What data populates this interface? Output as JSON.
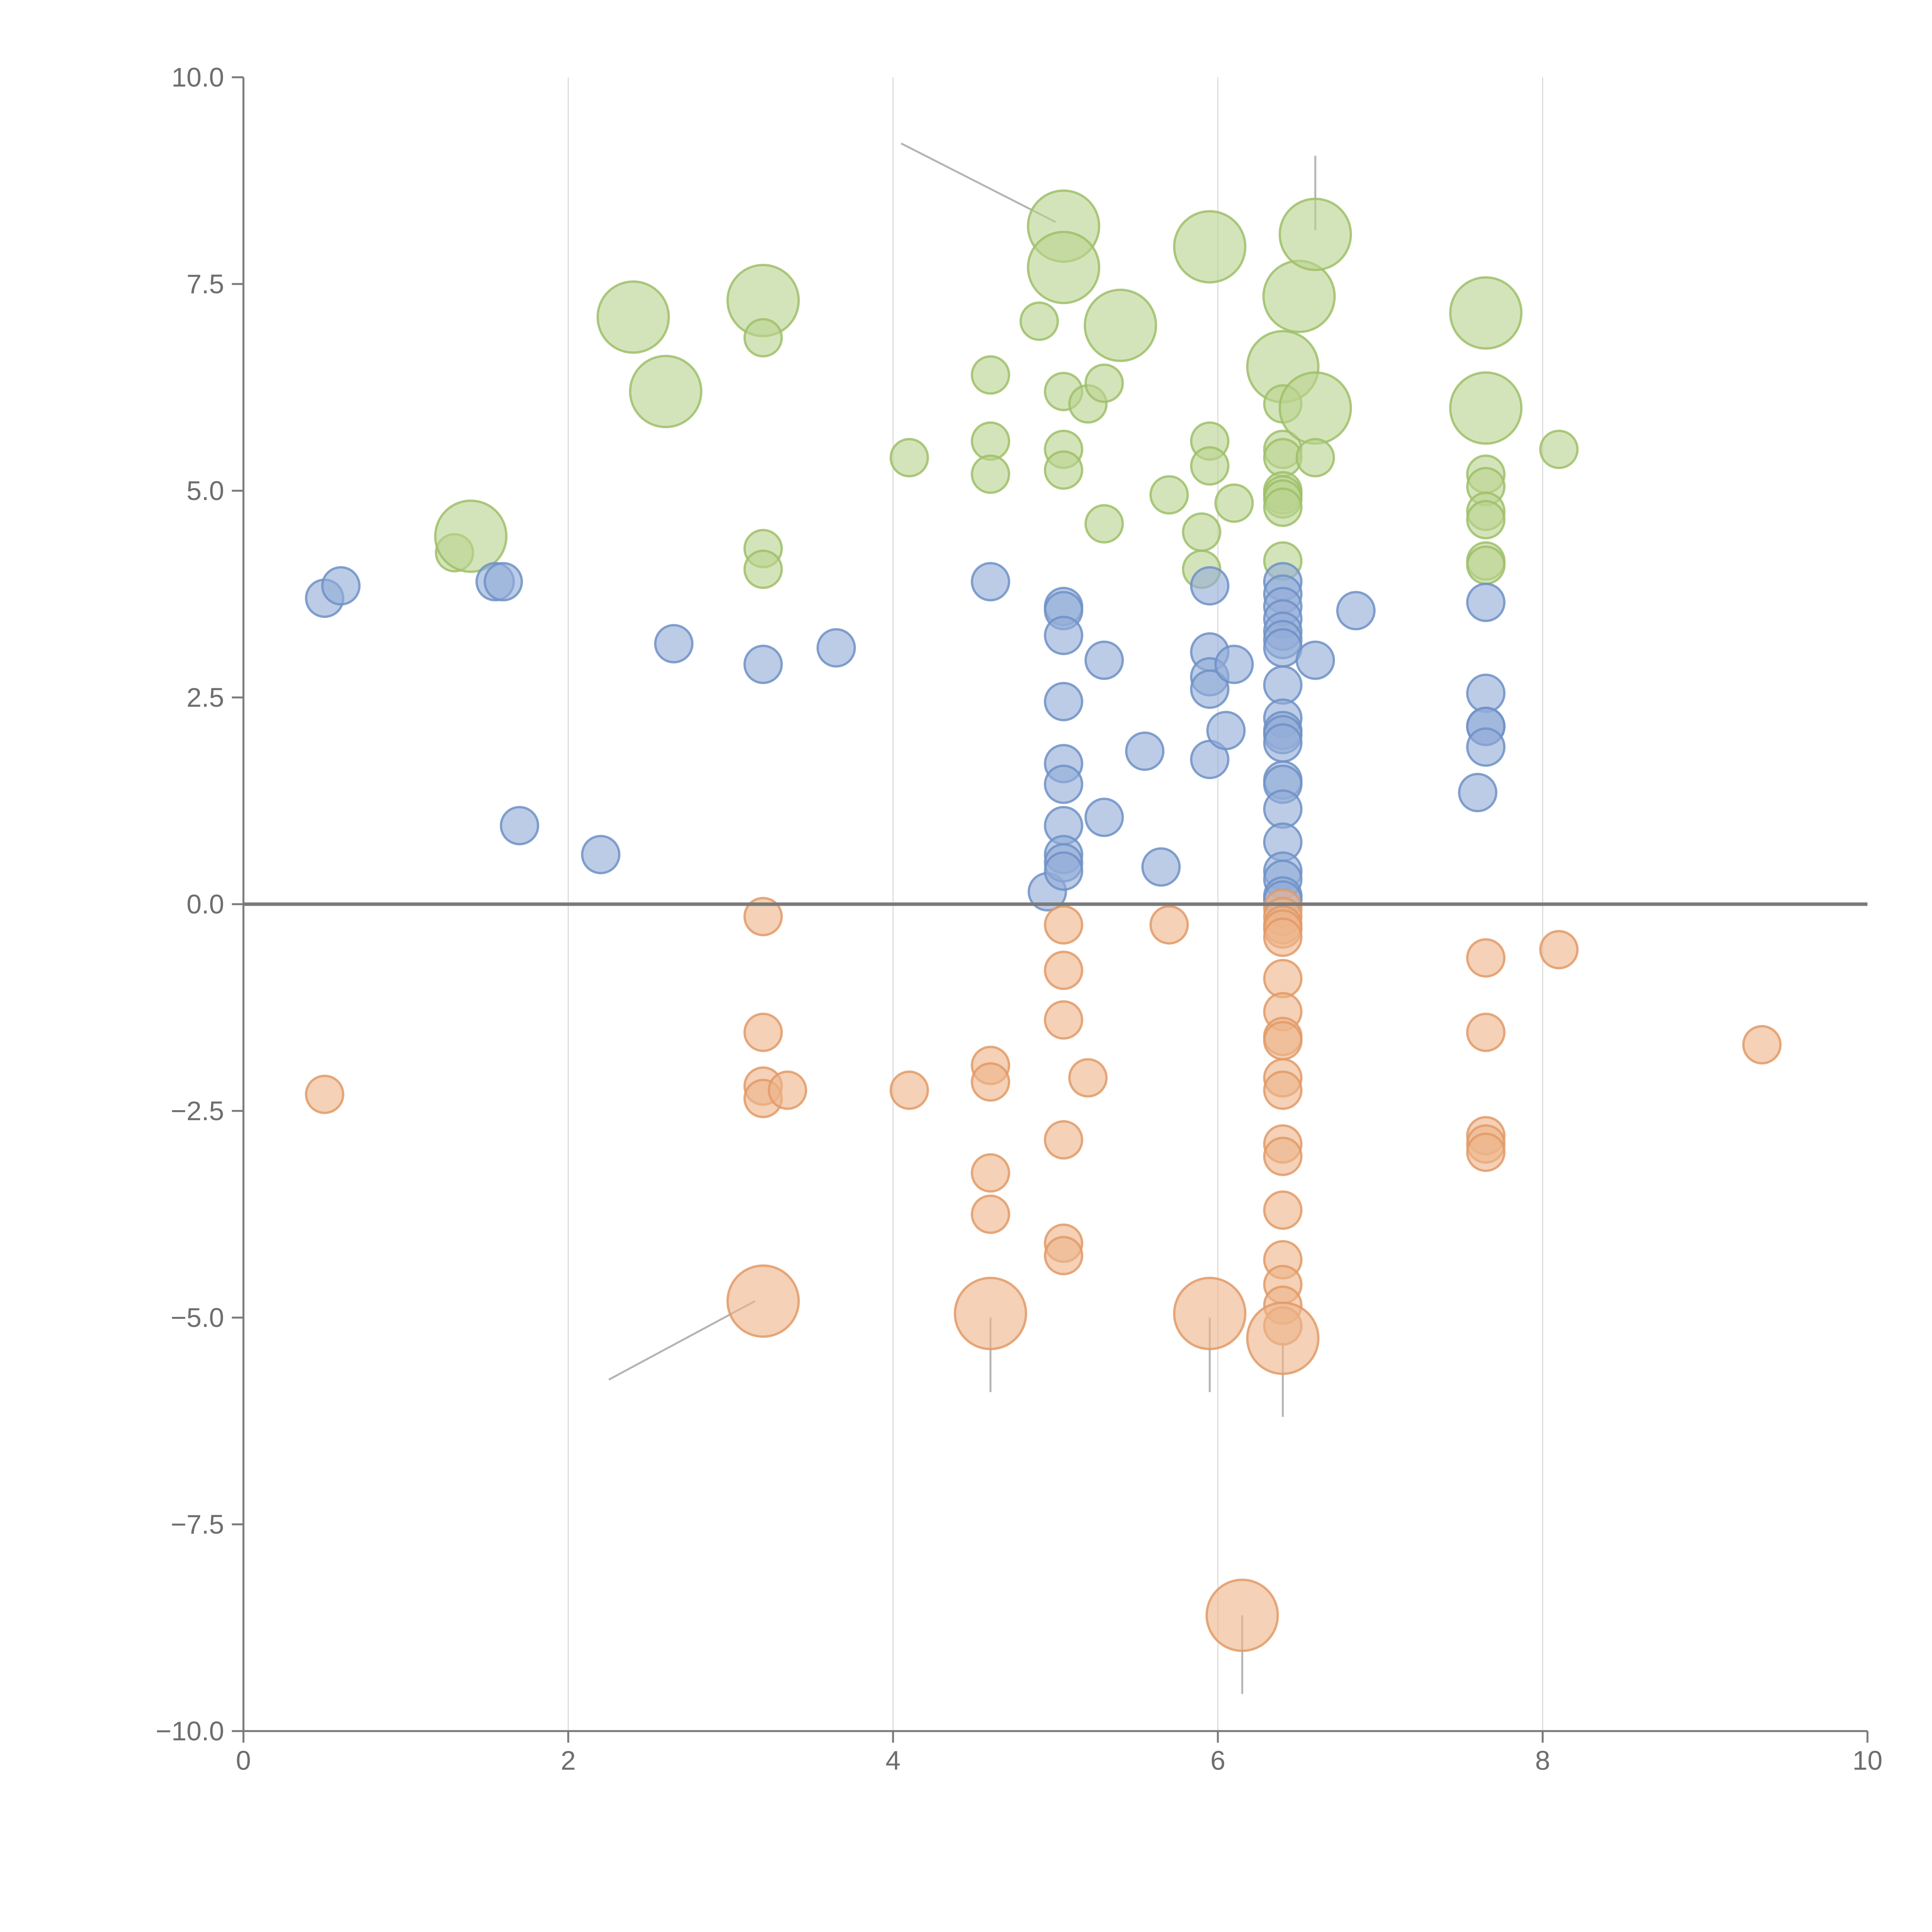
{
  "chart_data": {
    "type": "scatter",
    "title": "",
    "xlabel": "",
    "ylabel": "",
    "xlim": [
      0,
      10
    ],
    "ylim": [
      -10,
      10
    ],
    "grid": {
      "x": true,
      "y": false
    },
    "zero_line": true,
    "x_ticks": [
      "0",
      "2",
      "4",
      "6",
      "8",
      "10"
    ],
    "y_ticks": [
      "10.0",
      "7.5",
      "5.0",
      "2.5",
      "0.0",
      "−2.5",
      "−5.0",
      "−7.5",
      "−10.0"
    ],
    "colors": {
      "positive_high": {
        "fill": "#b9d38f",
        "stroke": "#9dbf68"
      },
      "positive_low": {
        "fill": "#93add8",
        "stroke": "#6f90c6"
      },
      "negative": {
        "fill": "#eeb48a",
        "stroke": "#e29a66"
      }
    },
    "series": [
      {
        "name": "green",
        "color_key": "positive_high",
        "points": [
          {
            "x": 1.3,
            "y": 4.25,
            "s": 1
          },
          {
            "x": 1.4,
            "y": 4.45,
            "s": 3
          },
          {
            "x": 2.4,
            "y": 7.1,
            "s": 3
          },
          {
            "x": 2.6,
            "y": 6.2,
            "s": 3
          },
          {
            "x": 3.2,
            "y": 7.3,
            "s": 3
          },
          {
            "x": 3.2,
            "y": 6.85,
            "s": 1
          },
          {
            "x": 3.2,
            "y": 4.3,
            "s": 1
          },
          {
            "x": 3.2,
            "y": 4.05,
            "s": 1
          },
          {
            "x": 4.1,
            "y": 5.4,
            "s": 1
          },
          {
            "x": 4.6,
            "y": 6.4,
            "s": 1
          },
          {
            "x": 4.6,
            "y": 5.6,
            "s": 1
          },
          {
            "x": 4.6,
            "y": 5.2,
            "s": 1
          },
          {
            "x": 4.9,
            "y": 7.05,
            "s": 1
          },
          {
            "x": 5.05,
            "y": 8.2,
            "s": 3
          },
          {
            "x": 5.05,
            "y": 7.7,
            "s": 3
          },
          {
            "x": 5.05,
            "y": 6.2,
            "s": 1
          },
          {
            "x": 5.05,
            "y": 5.5,
            "s": 1
          },
          {
            "x": 5.05,
            "y": 5.25,
            "s": 1
          },
          {
            "x": 5.2,
            "y": 6.05,
            "s": 1
          },
          {
            "x": 5.3,
            "y": 6.3,
            "s": 1
          },
          {
            "x": 5.3,
            "y": 4.6,
            "s": 1
          },
          {
            "x": 5.4,
            "y": 7.0,
            "s": 3
          },
          {
            "x": 5.7,
            "y": 4.95,
            "s": 1
          },
          {
            "x": 5.9,
            "y": 4.5,
            "s": 1
          },
          {
            "x": 5.9,
            "y": 4.05,
            "s": 1
          },
          {
            "x": 5.95,
            "y": 7.95,
            "s": 3
          },
          {
            "x": 5.95,
            "y": 5.6,
            "s": 1
          },
          {
            "x": 5.95,
            "y": 5.3,
            "s": 1
          },
          {
            "x": 6.1,
            "y": 4.85,
            "s": 1
          },
          {
            "x": 6.4,
            "y": 6.5,
            "s": 3
          },
          {
            "x": 6.4,
            "y": 6.05,
            "s": 1
          },
          {
            "x": 6.4,
            "y": 5.5,
            "s": 1
          },
          {
            "x": 6.4,
            "y": 5.4,
            "s": 1
          },
          {
            "x": 6.4,
            "y": 5.0,
            "s": 1
          },
          {
            "x": 6.4,
            "y": 4.95,
            "s": 1
          },
          {
            "x": 6.4,
            "y": 4.9,
            "s": 1
          },
          {
            "x": 6.4,
            "y": 4.8,
            "s": 1
          },
          {
            "x": 6.4,
            "y": 4.15,
            "s": 1
          },
          {
            "x": 6.5,
            "y": 7.35,
            "s": 3
          },
          {
            "x": 6.6,
            "y": 8.1,
            "s": 3
          },
          {
            "x": 6.6,
            "y": 6.0,
            "s": 3
          },
          {
            "x": 6.6,
            "y": 5.4,
            "s": 1
          },
          {
            "x": 7.65,
            "y": 7.15,
            "s": 3
          },
          {
            "x": 7.65,
            "y": 6.0,
            "s": 3
          },
          {
            "x": 7.65,
            "y": 5.2,
            "s": 1
          },
          {
            "x": 7.65,
            "y": 5.05,
            "s": 1
          },
          {
            "x": 7.65,
            "y": 4.75,
            "s": 1
          },
          {
            "x": 7.65,
            "y": 4.65,
            "s": 1
          },
          {
            "x": 7.65,
            "y": 4.15,
            "s": 1
          },
          {
            "x": 7.65,
            "y": 4.1,
            "s": 1
          },
          {
            "x": 8.1,
            "y": 5.5,
            "s": 1
          }
        ]
      },
      {
        "name": "blue",
        "color_key": "positive_low",
        "points": [
          {
            "x": 0.5,
            "y": 3.7,
            "s": 1
          },
          {
            "x": 0.6,
            "y": 3.85,
            "s": 1
          },
          {
            "x": 1.55,
            "y": 3.9,
            "s": 1
          },
          {
            "x": 1.6,
            "y": 3.9,
            "s": 1
          },
          {
            "x": 1.7,
            "y": 0.95,
            "s": 1
          },
          {
            "x": 2.2,
            "y": 0.6,
            "s": 1
          },
          {
            "x": 2.65,
            "y": 3.15,
            "s": 1
          },
          {
            "x": 3.2,
            "y": 2.9,
            "s": 1
          },
          {
            "x": 3.65,
            "y": 3.1,
            "s": 1
          },
          {
            "x": 4.6,
            "y": 3.9,
            "s": 1
          },
          {
            "x": 4.95,
            "y": 0.15,
            "s": 1
          },
          {
            "x": 5.05,
            "y": 3.6,
            "s": 1
          },
          {
            "x": 5.05,
            "y": 3.55,
            "s": 1
          },
          {
            "x": 5.05,
            "y": 3.25,
            "s": 1
          },
          {
            "x": 5.05,
            "y": 2.45,
            "s": 1
          },
          {
            "x": 5.05,
            "y": 1.7,
            "s": 1
          },
          {
            "x": 5.05,
            "y": 1.45,
            "s": 1
          },
          {
            "x": 5.05,
            "y": 0.95,
            "s": 1
          },
          {
            "x": 5.05,
            "y": 0.6,
            "s": 1
          },
          {
            "x": 5.05,
            "y": 0.5,
            "s": 1
          },
          {
            "x": 5.05,
            "y": 0.4,
            "s": 1
          },
          {
            "x": 5.3,
            "y": 2.95,
            "s": 1
          },
          {
            "x": 5.3,
            "y": 1.05,
            "s": 1
          },
          {
            "x": 5.55,
            "y": 1.85,
            "s": 1
          },
          {
            "x": 5.65,
            "y": 0.45,
            "s": 1
          },
          {
            "x": 5.95,
            "y": 3.85,
            "s": 1
          },
          {
            "x": 5.95,
            "y": 3.05,
            "s": 1
          },
          {
            "x": 5.95,
            "y": 2.75,
            "s": 1
          },
          {
            "x": 5.95,
            "y": 2.6,
            "s": 1
          },
          {
            "x": 5.95,
            "y": 1.75,
            "s": 1
          },
          {
            "x": 6.05,
            "y": 2.1,
            "s": 1
          },
          {
            "x": 6.1,
            "y": 2.9,
            "s": 1
          },
          {
            "x": 6.4,
            "y": 3.9,
            "s": 1
          },
          {
            "x": 6.4,
            "y": 3.75,
            "s": 1
          },
          {
            "x": 6.4,
            "y": 3.6,
            "s": 1
          },
          {
            "x": 6.4,
            "y": 3.45,
            "s": 1
          },
          {
            "x": 6.4,
            "y": 3.3,
            "s": 1
          },
          {
            "x": 6.4,
            "y": 3.2,
            "s": 1
          },
          {
            "x": 6.4,
            "y": 3.1,
            "s": 1
          },
          {
            "x": 6.4,
            "y": 2.65,
            "s": 1
          },
          {
            "x": 6.4,
            "y": 2.25,
            "s": 1
          },
          {
            "x": 6.4,
            "y": 2.1,
            "s": 1
          },
          {
            "x": 6.4,
            "y": 2.05,
            "s": 1
          },
          {
            "x": 6.4,
            "y": 1.95,
            "s": 1
          },
          {
            "x": 6.4,
            "y": 1.5,
            "s": 1
          },
          {
            "x": 6.4,
            "y": 1.45,
            "s": 1
          },
          {
            "x": 6.4,
            "y": 1.15,
            "s": 1
          },
          {
            "x": 6.4,
            "y": 0.75,
            "s": 1
          },
          {
            "x": 6.4,
            "y": 0.4,
            "s": 1
          },
          {
            "x": 6.4,
            "y": 0.3,
            "s": 1
          },
          {
            "x": 6.4,
            "y": 0.1,
            "s": 1
          },
          {
            "x": 6.4,
            "y": 0.05,
            "s": 1
          },
          {
            "x": 6.6,
            "y": 2.95,
            "s": 1
          },
          {
            "x": 6.85,
            "y": 3.55,
            "s": 1
          },
          {
            "x": 7.6,
            "y": 1.35,
            "s": 1
          },
          {
            "x": 7.65,
            "y": 3.65,
            "s": 1
          },
          {
            "x": 7.65,
            "y": 2.55,
            "s": 1
          },
          {
            "x": 7.65,
            "y": 2.15,
            "s": 1
          },
          {
            "x": 7.65,
            "y": 2.15,
            "s": 1
          },
          {
            "x": 7.65,
            "y": 1.9,
            "s": 1
          }
        ]
      },
      {
        "name": "orange",
        "color_key": "negative",
        "points": [
          {
            "x": 0.5,
            "y": -2.3,
            "s": 1
          },
          {
            "x": 3.2,
            "y": -0.15,
            "s": 1
          },
          {
            "x": 3.2,
            "y": -1.55,
            "s": 1
          },
          {
            "x": 3.2,
            "y": -2.2,
            "s": 1
          },
          {
            "x": 3.2,
            "y": -2.35,
            "s": 1
          },
          {
            "x": 3.35,
            "y": -2.25,
            "s": 1
          },
          {
            "x": 3.2,
            "y": -4.8,
            "s": 3
          },
          {
            "x": 4.1,
            "y": -2.25,
            "s": 1
          },
          {
            "x": 4.6,
            "y": -1.95,
            "s": 1
          },
          {
            "x": 4.6,
            "y": -2.15,
            "s": 1
          },
          {
            "x": 4.6,
            "y": -3.25,
            "s": 1
          },
          {
            "x": 4.6,
            "y": -3.75,
            "s": 1
          },
          {
            "x": 4.6,
            "y": -4.95,
            "s": 3
          },
          {
            "x": 5.05,
            "y": -0.25,
            "s": 1
          },
          {
            "x": 5.05,
            "y": -0.8,
            "s": 1
          },
          {
            "x": 5.05,
            "y": -1.4,
            "s": 1
          },
          {
            "x": 5.05,
            "y": -2.85,
            "s": 1
          },
          {
            "x": 5.05,
            "y": -4.1,
            "s": 1
          },
          {
            "x": 5.05,
            "y": -4.25,
            "s": 1
          },
          {
            "x": 5.2,
            "y": -2.1,
            "s": 1
          },
          {
            "x": 5.7,
            "y": -0.25,
            "s": 1
          },
          {
            "x": 5.95,
            "y": -4.95,
            "s": 3
          },
          {
            "x": 6.15,
            "y": -8.6,
            "s": 3
          },
          {
            "x": 6.4,
            "y": -0.05,
            "s": 1
          },
          {
            "x": 6.4,
            "y": -0.15,
            "s": 1
          },
          {
            "x": 6.4,
            "y": -0.25,
            "s": 1
          },
          {
            "x": 6.4,
            "y": -0.3,
            "s": 1
          },
          {
            "x": 6.4,
            "y": -0.4,
            "s": 1
          },
          {
            "x": 6.4,
            "y": -0.9,
            "s": 1
          },
          {
            "x": 6.4,
            "y": -1.3,
            "s": 1
          },
          {
            "x": 6.4,
            "y": -1.6,
            "s": 1
          },
          {
            "x": 6.4,
            "y": -1.65,
            "s": 1
          },
          {
            "x": 6.4,
            "y": -2.1,
            "s": 1
          },
          {
            "x": 6.4,
            "y": -2.25,
            "s": 1
          },
          {
            "x": 6.4,
            "y": -2.9,
            "s": 1
          },
          {
            "x": 6.4,
            "y": -3.05,
            "s": 1
          },
          {
            "x": 6.4,
            "y": -3.7,
            "s": 1
          },
          {
            "x": 6.4,
            "y": -4.3,
            "s": 1
          },
          {
            "x": 6.4,
            "y": -4.6,
            "s": 1
          },
          {
            "x": 6.4,
            "y": -4.85,
            "s": 1
          },
          {
            "x": 6.4,
            "y": -5.1,
            "s": 1
          },
          {
            "x": 6.4,
            "y": -5.25,
            "s": 3
          },
          {
            "x": 7.65,
            "y": -0.65,
            "s": 1
          },
          {
            "x": 7.65,
            "y": -1.55,
            "s": 1
          },
          {
            "x": 7.65,
            "y": -2.8,
            "s": 1
          },
          {
            "x": 7.65,
            "y": -2.9,
            "s": 1
          },
          {
            "x": 7.65,
            "y": -3.0,
            "s": 1
          },
          {
            "x": 8.1,
            "y": -0.55,
            "s": 1
          },
          {
            "x": 9.35,
            "y": -1.7,
            "s": 1
          }
        ]
      }
    ],
    "annotations": [
      {
        "from": [
          4.05,
          9.2
        ],
        "to": [
          5.0,
          8.25
        ]
      },
      {
        "from": [
          6.6,
          9.05
        ],
        "to": [
          6.6,
          8.15
        ]
      },
      {
        "from": [
          3.15,
          -4.8
        ],
        "to": [
          2.25,
          -5.75
        ]
      },
      {
        "from": [
          4.6,
          -5.0
        ],
        "to": [
          4.6,
          -5.9
        ]
      },
      {
        "from": [
          5.95,
          -5.0
        ],
        "to": [
          5.95,
          -5.9
        ]
      },
      {
        "from": [
          6.4,
          -5.3
        ],
        "to": [
          6.4,
          -6.2
        ]
      },
      {
        "from": [
          6.15,
          -8.6
        ],
        "to": [
          6.15,
          -9.55
        ]
      }
    ]
  }
}
